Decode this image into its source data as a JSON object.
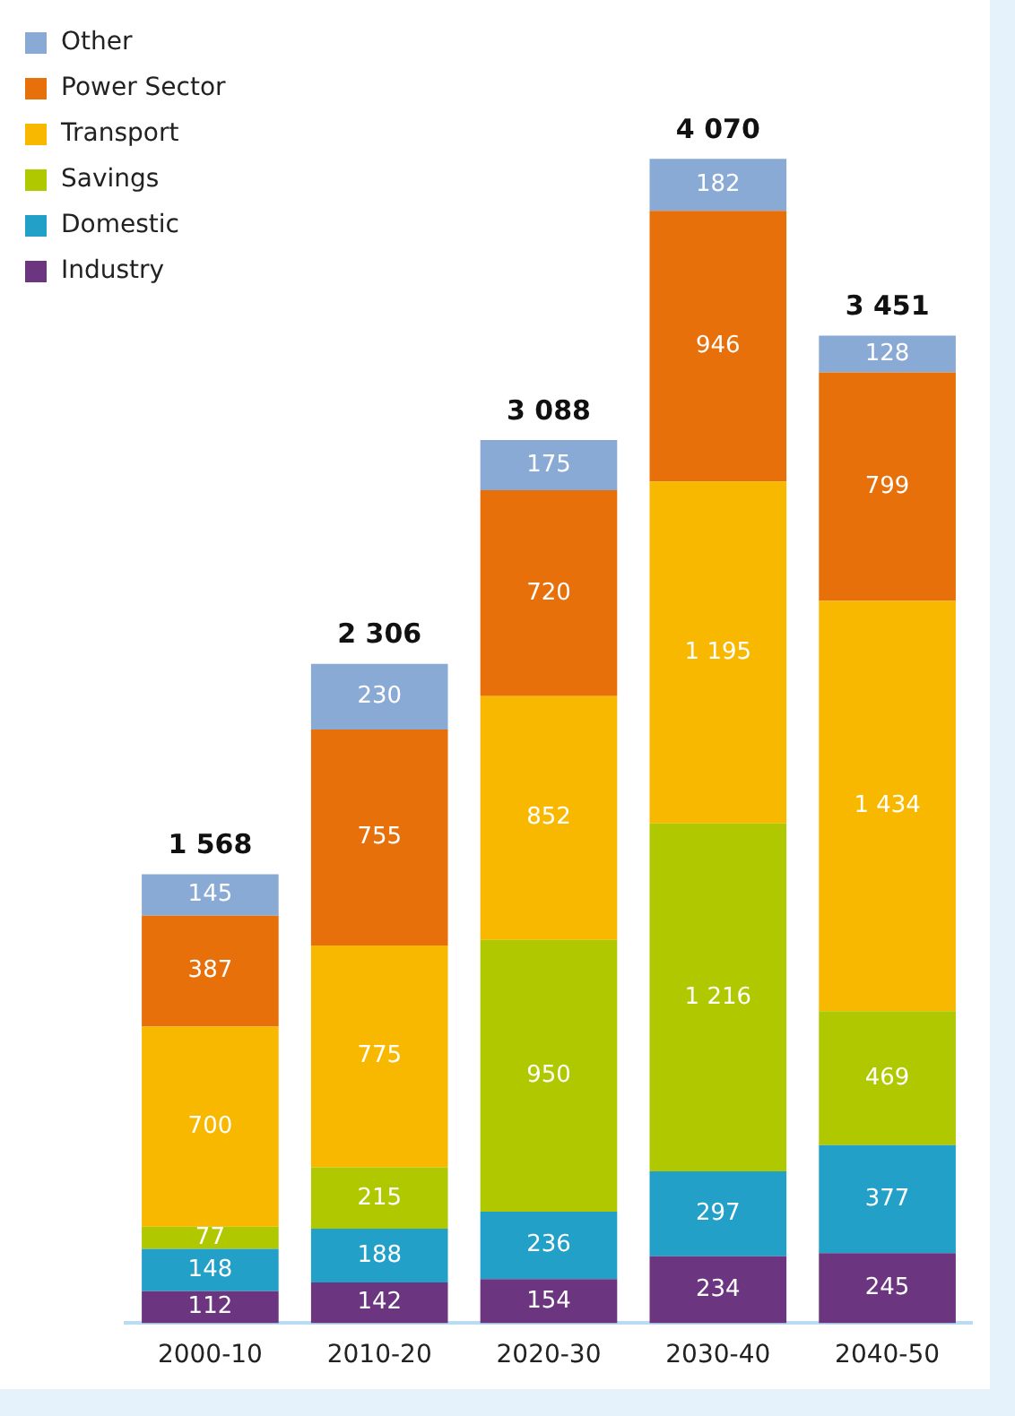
{
  "chart_data": {
    "type": "bar",
    "stacked": true,
    "legend": "top left",
    "categories": [
      "2000-10",
      "2010-20",
      "2020-30",
      "2030-40",
      "2040-50"
    ],
    "series": [
      {
        "name": "Industry",
        "color": "#6c3580",
        "values": [
          112,
          142,
          154,
          234,
          245
        ],
        "value_labels": [
          "112",
          "142",
          "154",
          "234",
          "245"
        ]
      },
      {
        "name": "Domestic",
        "color": "#22a0c8",
        "values": [
          148,
          188,
          236,
          297,
          377
        ],
        "value_labels": [
          "148",
          "188",
          "236",
          "297",
          "377"
        ]
      },
      {
        "name": "Savings",
        "color": "#b0c800",
        "values": [
          77,
          215,
          950,
          1216,
          469
        ],
        "value_labels": [
          "77",
          "215",
          "950",
          "1 216",
          "469"
        ]
      },
      {
        "name": "Transport",
        "color": "#f9b800",
        "values": [
          700,
          775,
          852,
          1195,
          1434
        ],
        "value_labels": [
          "700",
          "775",
          "852",
          "1 195",
          "1 434"
        ]
      },
      {
        "name": "Power Sector",
        "color": "#e8700a",
        "values": [
          387,
          755,
          720,
          946,
          799
        ],
        "value_labels": [
          "387",
          "755",
          "720",
          "946",
          "799"
        ]
      },
      {
        "name": "Other",
        "color": "#8aaad6",
        "values": [
          145,
          230,
          175,
          182,
          128
        ],
        "value_labels": [
          "145",
          "230",
          "175",
          "182",
          "128"
        ]
      }
    ],
    "totals": [
      "1 568",
      "2 306",
      "3 088",
      "4 070",
      "3 451"
    ]
  }
}
